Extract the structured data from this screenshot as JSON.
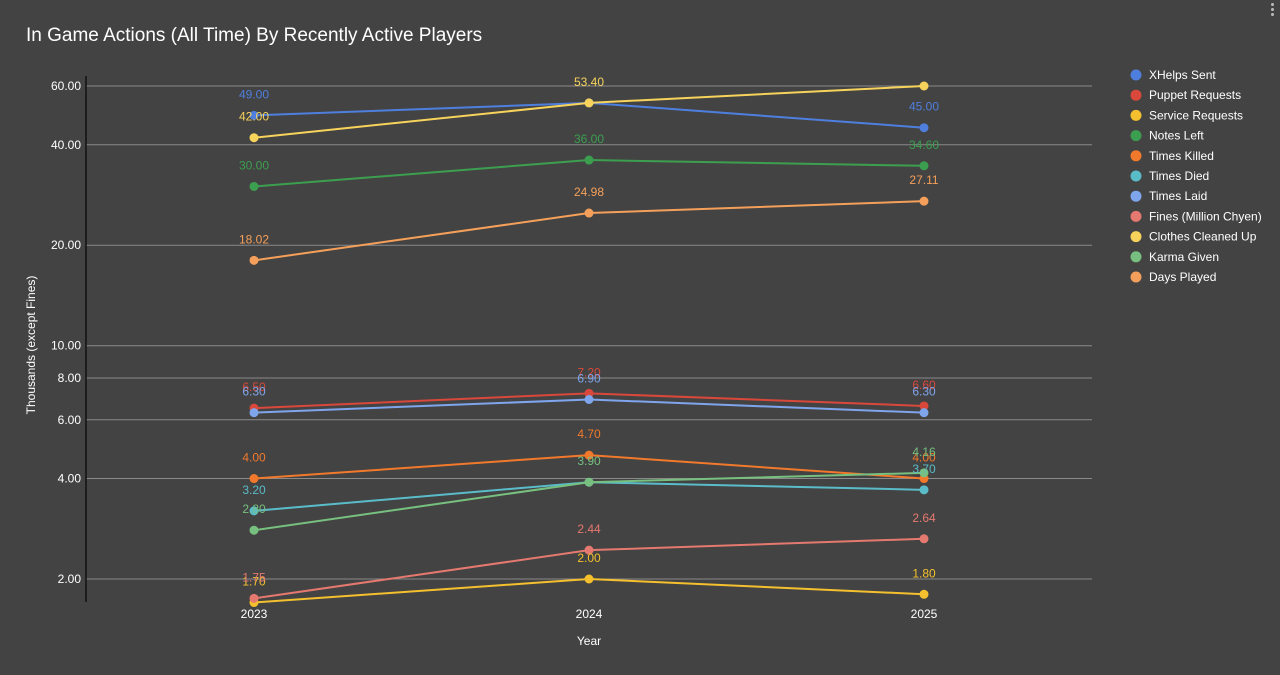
{
  "menu": {
    "icon": "more-vert-icon"
  },
  "chart_data": {
    "type": "line",
    "title": "In Game Actions (All Time) By Recently Active Players",
    "xlabel": "Year",
    "ylabel": "Thousands (except Fines)",
    "y_scale": "log",
    "ylim": [
      1.7,
      66
    ],
    "yticks": [
      2,
      4,
      6,
      8,
      10,
      20,
      40,
      60
    ],
    "ytick_labels": [
      "2.00",
      "4.00",
      "6.00",
      "8.00",
      "10.00",
      "20.00",
      "40.00",
      "60.00"
    ],
    "grid": true,
    "legend": "right",
    "categories": [
      "2023",
      "2024",
      "2025"
    ],
    "series": [
      {
        "name": "XHelps Sent",
        "color": "#4f7fde",
        "values": [
          49.0,
          53.4,
          45.0
        ],
        "labels": [
          "49.00",
          "",
          "45.00"
        ]
      },
      {
        "name": "Puppet Requests",
        "color": "#d9483b",
        "values": [
          6.5,
          7.2,
          6.6
        ],
        "labels": [
          "6.50",
          "7.20",
          "6.60"
        ]
      },
      {
        "name": "Service Requests",
        "color": "#f4c02e",
        "values": [
          1.7,
          2.0,
          1.8
        ],
        "labels": [
          "1.70",
          "2.00",
          "1.80"
        ]
      },
      {
        "name": "Notes Left",
        "color": "#3c9f50",
        "values": [
          30.0,
          36.0,
          34.6
        ],
        "labels": [
          "30.00",
          "36.00",
          "34.60"
        ]
      },
      {
        "name": "Times Killed",
        "color": "#f2792c",
        "values": [
          4.0,
          4.7,
          4.0
        ],
        "labels": [
          "4.00",
          "4.70",
          "4.00"
        ]
      },
      {
        "name": "Times Died",
        "color": "#5bbcc9",
        "values": [
          3.2,
          3.9,
          3.7
        ],
        "labels": [
          "3.20",
          "",
          "3.70"
        ]
      },
      {
        "name": "Times Laid",
        "color": "#7fa5ec",
        "values": [
          6.3,
          6.9,
          6.3
        ],
        "labels": [
          "6.30",
          "6.90",
          "6.30"
        ]
      },
      {
        "name": "Fines (Million Chyen)",
        "color": "#e5796f",
        "values": [
          1.75,
          2.44,
          2.64
        ],
        "labels": [
          "1.75",
          "2.44",
          "2.64"
        ]
      },
      {
        "name": "Clothes Cleaned Up",
        "color": "#f7d35c",
        "values": [
          42.0,
          53.4,
          60.0
        ],
        "labels": [
          "42.00",
          "53.40",
          ""
        ]
      },
      {
        "name": "Karma Given",
        "color": "#77c07f",
        "values": [
          2.8,
          3.9,
          4.16
        ],
        "labels": [
          "2.80",
          "3.90",
          "4.16"
        ]
      },
      {
        "name": "Days Played",
        "color": "#f5a05a",
        "values": [
          18.02,
          24.98,
          27.11
        ],
        "labels": [
          "18.02",
          "24.98",
          "27.11"
        ]
      }
    ]
  }
}
